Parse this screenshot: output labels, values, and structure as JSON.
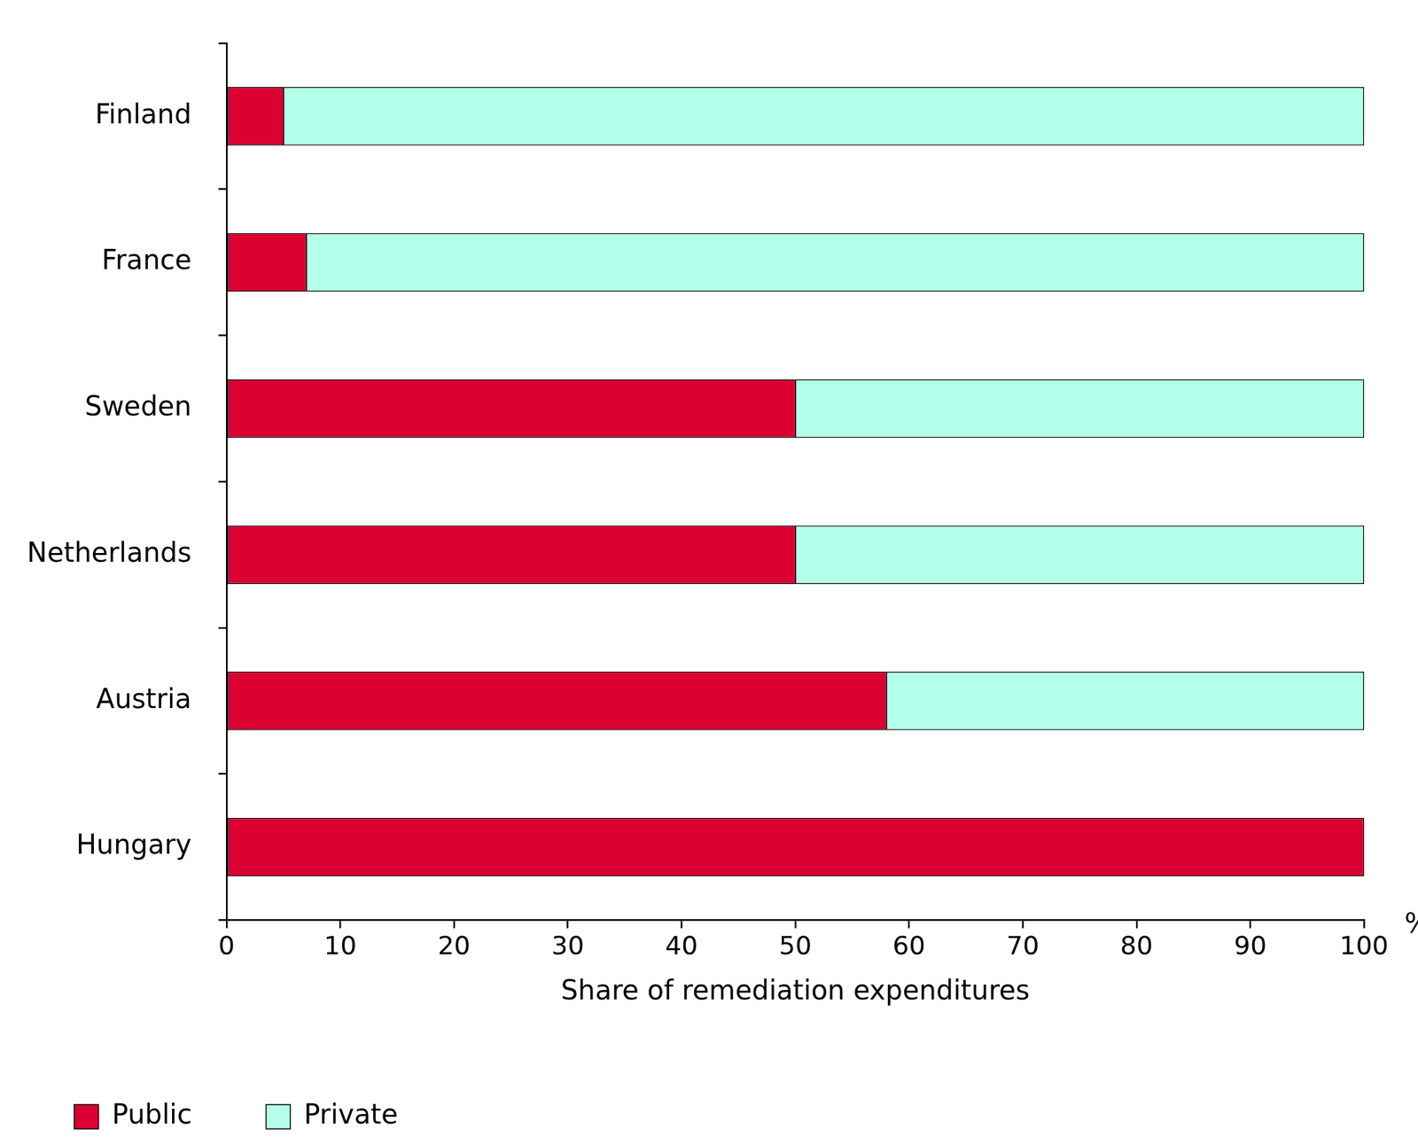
{
  "chart_data": {
    "type": "bar",
    "orientation": "horizontal",
    "stacked": true,
    "categories": [
      "Finland",
      "France",
      "Sweden",
      "Netherlands",
      "Austria",
      "Hungary"
    ],
    "series": [
      {
        "name": "Public",
        "color": "#dc0032",
        "values": [
          5,
          7,
          50,
          50,
          58,
          100
        ]
      },
      {
        "name": "Private",
        "color": "#b3ffe9",
        "values": [
          95,
          93,
          50,
          50,
          42,
          0
        ]
      }
    ],
    "x_label": "Share of remediation expenditures",
    "annotations": [
      "%"
    ],
    "xlim": [
      0,
      100
    ],
    "xticks": [
      0,
      10,
      20,
      30,
      40,
      50,
      60,
      70,
      80,
      90,
      100
    ],
    "grid": false,
    "legend": "bottom-left",
    "data_labels": false
  }
}
